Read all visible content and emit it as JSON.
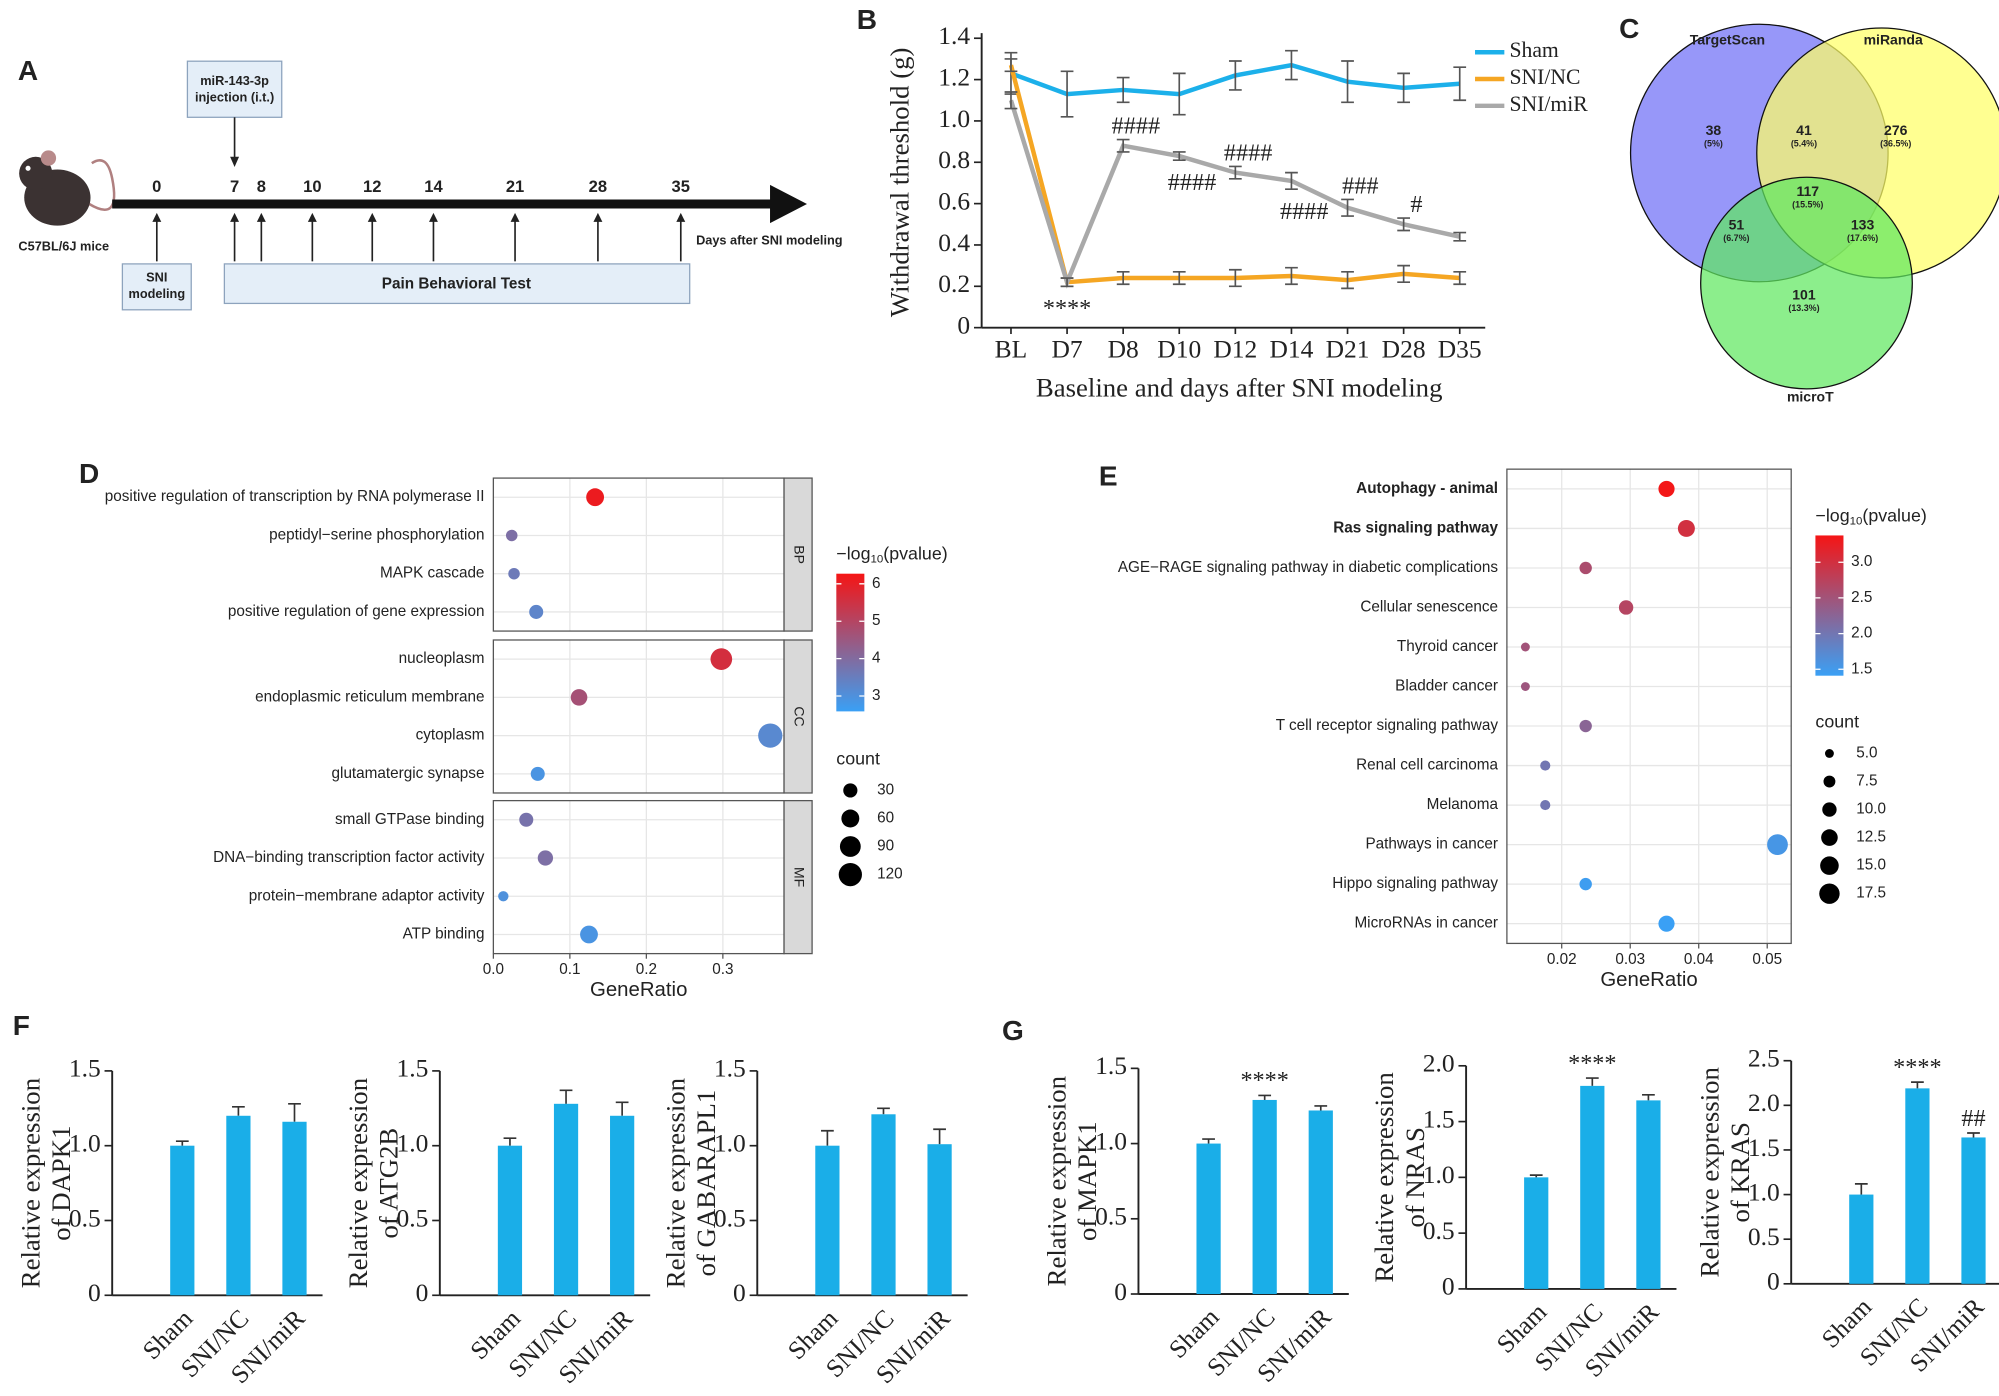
{
  "panel_labels": [
    "A",
    "B",
    "C",
    "D",
    "E",
    "F",
    "G"
  ],
  "timeline": {
    "organism": "C57BL/6J mice",
    "injection": [
      "miR-143-3p",
      "injection (i.t.)"
    ],
    "days": [
      0,
      7,
      8,
      10,
      12,
      14,
      21,
      28,
      35
    ],
    "axis_label": "Days after SNI modeling",
    "modeling": [
      "SNI",
      "modeling"
    ],
    "test": "Pain Behavioral Test"
  },
  "venn": {
    "sets": [
      {
        "name": "TargetScan",
        "color": "#6f6ff6",
        "label_color": "#1d1da8"
      },
      {
        "name": "miRanda",
        "color": "#ffff66",
        "label_color": "#7d7a12"
      },
      {
        "name": "microT",
        "color": "#5fe85f",
        "label_color": "#1f8a1f"
      }
    ],
    "regions": [
      {
        "count": 38,
        "percent": "(5%)"
      },
      {
        "count": 41,
        "percent": "(5.4%)"
      },
      {
        "count": 276,
        "percent": "(36.5%)"
      },
      {
        "count": 117,
        "percent": "(15.5%)"
      },
      {
        "count": 51,
        "percent": "(6.7%)"
      },
      {
        "count": 133,
        "percent": "(17.6%)"
      },
      {
        "count": 101,
        "percent": "(13.3%)"
      }
    ]
  },
  "chart_data": [
    {
      "type": "line",
      "ylabel": "Withdrawal threshold (g)",
      "xlabel": "Baseline and days after SNI modeling",
      "categories": [
        "BL",
        "D7",
        "D8",
        "D10",
        "D12",
        "D14",
        "D21",
        "D28",
        "D35"
      ],
      "ylim": [
        0,
        1.4
      ],
      "yticks": [
        0,
        0.2,
        0.4,
        0.6,
        0.8,
        {
          "value": 1,
          "label": "1.0"
        },
        1.2,
        1.4
      ],
      "series": [
        {
          "name": "Sham",
          "color": "#1cb0ea",
          "values": [
            1.23,
            1.13,
            1.15,
            1.13,
            1.22,
            1.27,
            1.19,
            1.16,
            1.18
          ],
          "errors": [
            0.1,
            0.11,
            0.06,
            0.1,
            0.07,
            0.07,
            0.1,
            0.07,
            0.08
          ]
        },
        {
          "name": "SNI/NC",
          "color": "#f5a623",
          "values": [
            1.27,
            0.22,
            0.24,
            0.24,
            0.24,
            0.25,
            0.23,
            0.26,
            0.24
          ],
          "errors": [
            0.03,
            0.02,
            0.03,
            0.03,
            0.04,
            0.04,
            0.04,
            0.04,
            0.03
          ],
          "annotations": [
            null,
            "****",
            null,
            null,
            null,
            null,
            null,
            null,
            null
          ]
        },
        {
          "name": "SNI/miR",
          "color": "#a9a9a9",
          "values": [
            1.1,
            0.22,
            0.88,
            0.83,
            0.75,
            0.71,
            0.58,
            0.5,
            0.44
          ],
          "errors": [
            0.04,
            0.02,
            0.03,
            0.02,
            0.03,
            0.04,
            0.04,
            0.03,
            0.02
          ],
          "annotations": [
            null,
            null,
            "####",
            "####",
            "####",
            "####",
            "###",
            "#",
            null
          ]
        }
      ]
    },
    {
      "type": "dotplot",
      "xlabel": "GeneRatio",
      "xlim": [
        0,
        0.38
      ],
      "xticks": [
        {
          "value": 0,
          "label": "0.0"
        },
        0.1,
        0.2,
        0.3
      ],
      "color_title": [
        "−log",
        "10",
        "(pvalue)"
      ],
      "color_range": [
        "#3aa0f5",
        "#f51515"
      ],
      "colorlim": [
        2.59,
        6.27
      ],
      "color_ticks": [
        3,
        4,
        5,
        6
      ],
      "size_title": "count",
      "size_ticks": [
        30,
        60,
        90,
        120
      ],
      "groups": [
        {
          "name": "BP",
          "terms": [
            "positive regulation of transcription by RNA polymerase II",
            "peptidyl−serine phosphorylation",
            "MAPK cascade",
            "positive regulation of gene expression"
          ],
          "x": [
            0.133,
            0.024,
            0.027,
            0.056
          ],
          "neglog10p": [
            6.1,
            3.9,
            3.6,
            3.3
          ],
          "count": [
            59,
            15,
            15,
            29
          ]
        },
        {
          "name": "CC",
          "terms": [
            "nucleoplasm",
            "endoplasmic reticulum membrane",
            "cytoplasm",
            "glutamatergic synapse"
          ],
          "x": [
            0.298,
            0.112,
            0.362,
            0.058
          ],
          "neglog10p": [
            5.6,
            4.7,
            3.2,
            2.9
          ],
          "count": [
            100,
            48,
            133,
            29
          ]
        },
        {
          "name": "MF",
          "terms": [
            "small GTPase binding",
            "DNA−binding transcription factor activity",
            "protein−membrane adaptor activity",
            "ATP binding"
          ],
          "x": [
            0.043,
            0.068,
            0.013,
            0.125
          ],
          "neglog10p": [
            3.8,
            3.9,
            3.0,
            2.9
          ],
          "count": [
            29,
            38,
            10,
            59
          ]
        }
      ]
    },
    {
      "type": "dotplot",
      "xlabel": "GeneRatio",
      "xlim": [
        0.012,
        0.0535
      ],
      "xticks": [
        0.02,
        0.03,
        0.04,
        0.05
      ],
      "color_title": [
        "−log",
        "10",
        "(pvalue)"
      ],
      "color_range": [
        "#3aa0f5",
        "#f51515"
      ],
      "colorlim": [
        1.41,
        3.375
      ],
      "color_ticks": [
        1.5,
        {
          "value": 2,
          "label": "2.0"
        },
        2.5,
        {
          "value": 3,
          "label": "3.0"
        }
      ],
      "size_title": "count",
      "size_ticks": [
        {
          "value": 5,
          "label": "5.0"
        },
        7.5,
        {
          "value": 10,
          "label": "10.0"
        },
        12.5,
        {
          "value": 15,
          "label": "15.0"
        },
        17.5
      ],
      "groups": [
        {
          "terms": [
            "Autophagy - animal",
            "Ras signaling pathway",
            "AGE−RAGE signaling pathway in diabetic complications",
            "Cellular senescence",
            "Thyroid cancer",
            "Bladder cancer",
            "T cell receptor signaling pathway",
            "Renal cell carcinoma",
            "Melanoma",
            "Pathways in cancer",
            "Hippo signaling pathway",
            "MicroRNAs in cancer"
          ],
          "term_colors": [
            "#e8141b",
            "#e8141b",
            "#333333",
            "#333333",
            "#333333",
            "#333333",
            "#333333",
            "#333333",
            "#333333",
            "#333333",
            "#333333",
            "#333333"
          ],
          "x": [
            0.0353,
            0.0382,
            0.0235,
            0.0294,
            0.0147,
            0.0147,
            0.0235,
            0.0176,
            0.0176,
            0.0515,
            0.0235,
            0.0353
          ],
          "neglog10p": [
            3.35,
            3.0,
            2.6,
            2.7,
            2.5,
            2.45,
            2.25,
            2.0,
            2.0,
            1.55,
            1.45,
            1.4
          ],
          "count": [
            12,
            13,
            8,
            10,
            5,
            5,
            8,
            6,
            6,
            18,
            8,
            12
          ]
        }
      ]
    },
    {
      "type": "bar",
      "ylabel": [
        "Relative expression",
        "of DAPK1"
      ],
      "categories": [
        "Sham",
        "SNI/NC",
        "SNI/miR"
      ],
      "color": "#1aaee8",
      "values": [
        1.0,
        1.2,
        1.16
      ],
      "errors": [
        0.03,
        0.06,
        0.12
      ],
      "ylim": [
        0,
        1.5
      ],
      "yticks": [
        0,
        0.5,
        {
          "value": 1,
          "label": "1.0"
        },
        1.5
      ]
    },
    {
      "type": "bar",
      "ylabel": [
        "Relative expression",
        "of ATG2B"
      ],
      "categories": [
        "Sham",
        "SNI/NC",
        "SNI/miR"
      ],
      "color": "#1aaee8",
      "values": [
        1.0,
        1.28,
        1.2
      ],
      "errors": [
        0.05,
        0.09,
        0.09
      ],
      "ylim": [
        0,
        1.5
      ],
      "yticks": [
        0,
        0.5,
        {
          "value": 1,
          "label": "1.0"
        },
        1.5
      ]
    },
    {
      "type": "bar",
      "ylabel": [
        "Relative expression",
        "of GABARAPL1"
      ],
      "categories": [
        "Sham",
        "SNI/NC",
        "SNI/miR"
      ],
      "color": "#1aaee8",
      "values": [
        1.0,
        1.21,
        1.01
      ],
      "errors": [
        0.1,
        0.04,
        0.1
      ],
      "ylim": [
        0,
        1.5
      ],
      "yticks": [
        0,
        0.5,
        {
          "value": 1,
          "label": "1.0"
        },
        1.5
      ]
    },
    {
      "type": "bar",
      "ylabel": [
        "Relative expression",
        "of MAPK1"
      ],
      "categories": [
        "Sham",
        "SNI/NC",
        "SNI/miR"
      ],
      "color": "#1aaee8",
      "values": [
        1.0,
        1.29,
        1.22
      ],
      "errors": [
        0.03,
        0.03,
        0.03
      ],
      "annotations": [
        null,
        "****",
        null
      ],
      "ylim": [
        0,
        1.5
      ],
      "yticks": [
        0,
        0.5,
        {
          "value": 1,
          "label": "1.0"
        },
        1.5
      ]
    },
    {
      "type": "bar",
      "ylabel": [
        "Relative expression",
        "of NRAS"
      ],
      "categories": [
        "Sham",
        "SNI/NC",
        "SNI/miR"
      ],
      "color": "#1aaee8",
      "values": [
        1.0,
        1.82,
        1.69
      ],
      "errors": [
        0.02,
        0.07,
        0.05
      ],
      "annotations": [
        null,
        "****",
        null
      ],
      "ylim": [
        0,
        2
      ],
      "yticks": [
        0,
        0.5,
        {
          "value": 1,
          "label": "1.0"
        },
        1.5,
        {
          "value": 2,
          "label": "2.0"
        }
      ]
    },
    {
      "type": "bar",
      "ylabel": [
        "Relative expression",
        "of KRAS"
      ],
      "categories": [
        "Sham",
        "SNI/NC",
        "SNI/miR"
      ],
      "color": "#1aaee8",
      "values": [
        1.0,
        2.19,
        1.64
      ],
      "errors": [
        0.12,
        0.07,
        0.05
      ],
      "annotations": [
        null,
        "****",
        "##"
      ],
      "ylim": [
        0,
        2.5
      ],
      "yticks": [
        0,
        0.5,
        {
          "value": 1,
          "label": "1.0"
        },
        1.5,
        {
          "value": 2,
          "label": "2.0"
        },
        2.5
      ]
    }
  ]
}
